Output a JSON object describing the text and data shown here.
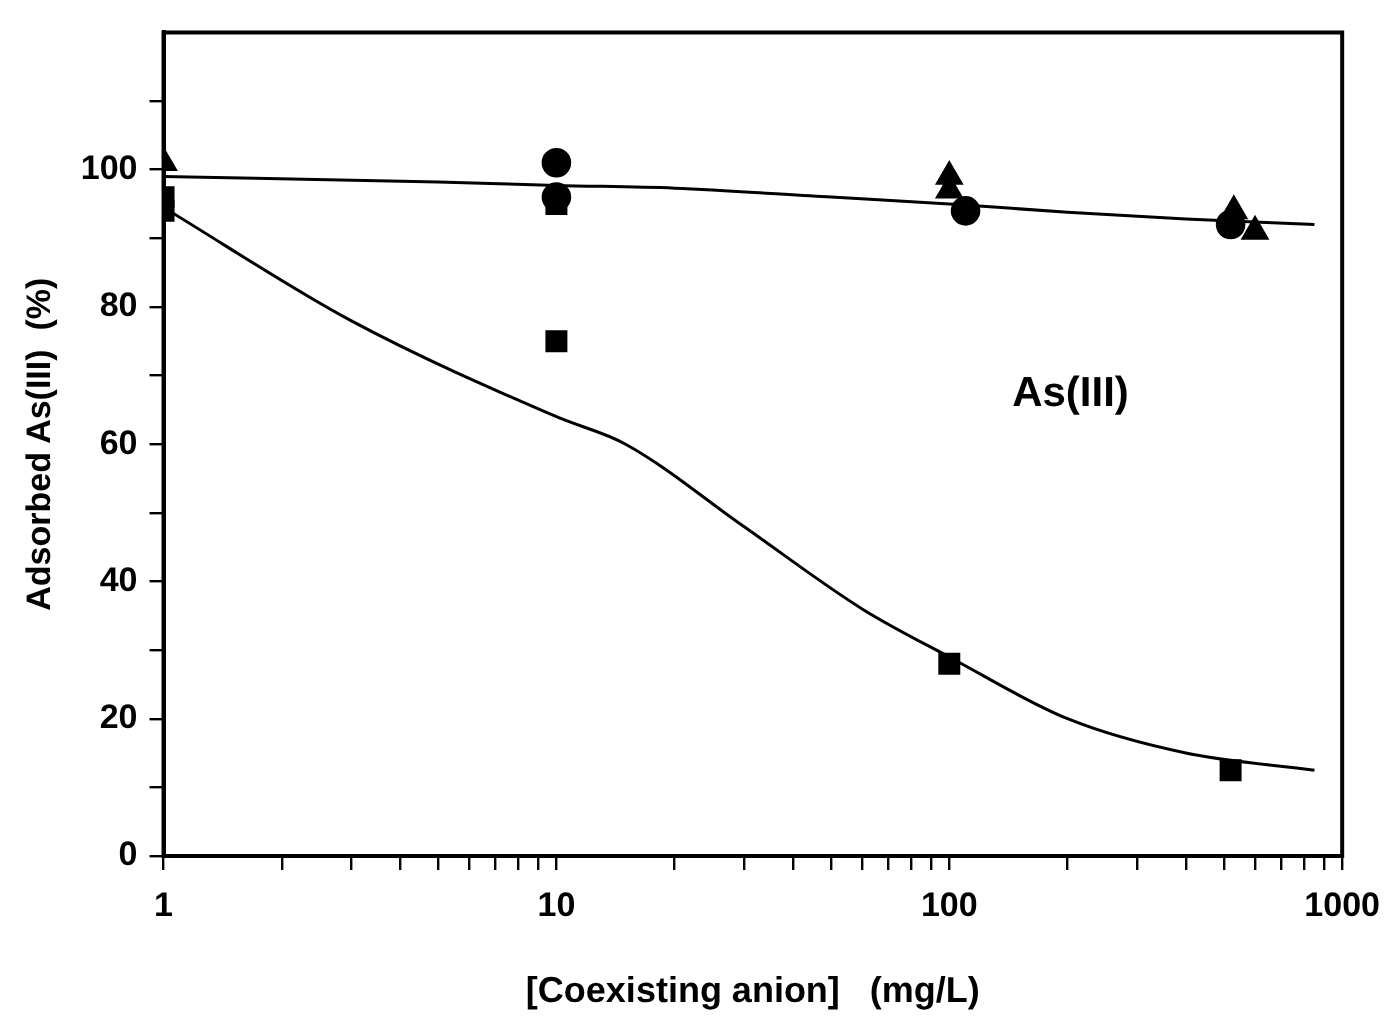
{
  "chart_data": {
    "type": "scatter",
    "xlabel": "[Coexisting anion]   (mg/L)",
    "ylabel": "Adsorbed As(III)  (%)",
    "annotations": [
      "As(III)"
    ],
    "log": "x",
    "grid": false,
    "legend": false,
    "xlim": [
      1,
      1000
    ],
    "ylim": [
      0,
      120
    ],
    "xticks": [
      1,
      {
        "value": 2,
        "label": null
      },
      {
        "value": 3,
        "label": null
      },
      {
        "value": 4,
        "label": null
      },
      {
        "value": 5,
        "label": null
      },
      {
        "value": 6,
        "label": null
      },
      {
        "value": 7,
        "label": null
      },
      {
        "value": 8,
        "label": null
      },
      {
        "value": 9,
        "label": null
      },
      10,
      {
        "value": 20,
        "label": null
      },
      {
        "value": 30,
        "label": null
      },
      {
        "value": 40,
        "label": null
      },
      {
        "value": 50,
        "label": null
      },
      {
        "value": 60,
        "label": null
      },
      {
        "value": 70,
        "label": null
      },
      {
        "value": 80,
        "label": null
      },
      {
        "value": 90,
        "label": null
      },
      100,
      {
        "value": 200,
        "label": null
      },
      {
        "value": 300,
        "label": null
      },
      {
        "value": 400,
        "label": null
      },
      {
        "value": 500,
        "label": null
      },
      {
        "value": 600,
        "label": null
      },
      {
        "value": 700,
        "label": null
      },
      {
        "value": 800,
        "label": null
      },
      {
        "value": 900,
        "label": null
      },
      1000
    ],
    "yticks": [
      0,
      {
        "value": 10,
        "label": null
      },
      20,
      {
        "value": 30,
        "label": null
      },
      40,
      {
        "value": 50,
        "label": null
      },
      60,
      {
        "value": 70,
        "label": null
      },
      80,
      {
        "value": 90,
        "label": null
      },
      100,
      {
        "value": 110,
        "label": null
      }
    ],
    "series": [
      {
        "type": "line",
        "color": "#000000",
        "marker": "none",
        "x": [
          1,
          5,
          10,
          20,
          50,
          100,
          200,
          400,
          850
        ],
        "values": [
          99,
          98.2,
          97.7,
          97.3,
          96,
          95,
          93.8,
          92.8,
          92
        ]
      },
      {
        "type": "line",
        "color": "#000000",
        "marker": "none",
        "x": [
          1,
          3,
          10,
          15,
          30,
          60,
          100,
          200,
          400,
          850
        ],
        "values": [
          94.5,
          78,
          64,
          60,
          48,
          36,
          29,
          20,
          15,
          12.5
        ]
      },
      {
        "color": "#000000",
        "marker": "triangle",
        "x": [
          1,
          100,
          530
        ],
        "values": [
          101,
          99,
          94
        ]
      },
      {
        "color": "#000000",
        "marker": "circle",
        "x": [
          10
        ],
        "values": [
          101
        ]
      },
      {
        "color": "#000000",
        "marker": "circle",
        "x": [
          10,
          110,
          520
        ],
        "values": [
          96,
          94,
          92
        ]
      },
      {
        "color": "#000000",
        "marker": "square",
        "x": [
          1,
          10
        ],
        "values": [
          96,
          95
        ]
      },
      {
        "color": "#000000",
        "marker": "square",
        "x": [
          1,
          10,
          100,
          520
        ],
        "values": [
          94,
          75,
          28,
          12.5
        ]
      },
      {
        "color": "#000000",
        "marker": "triangle",
        "x": [
          100,
          600
        ],
        "values": [
          97,
          91
        ]
      }
    ]
  }
}
